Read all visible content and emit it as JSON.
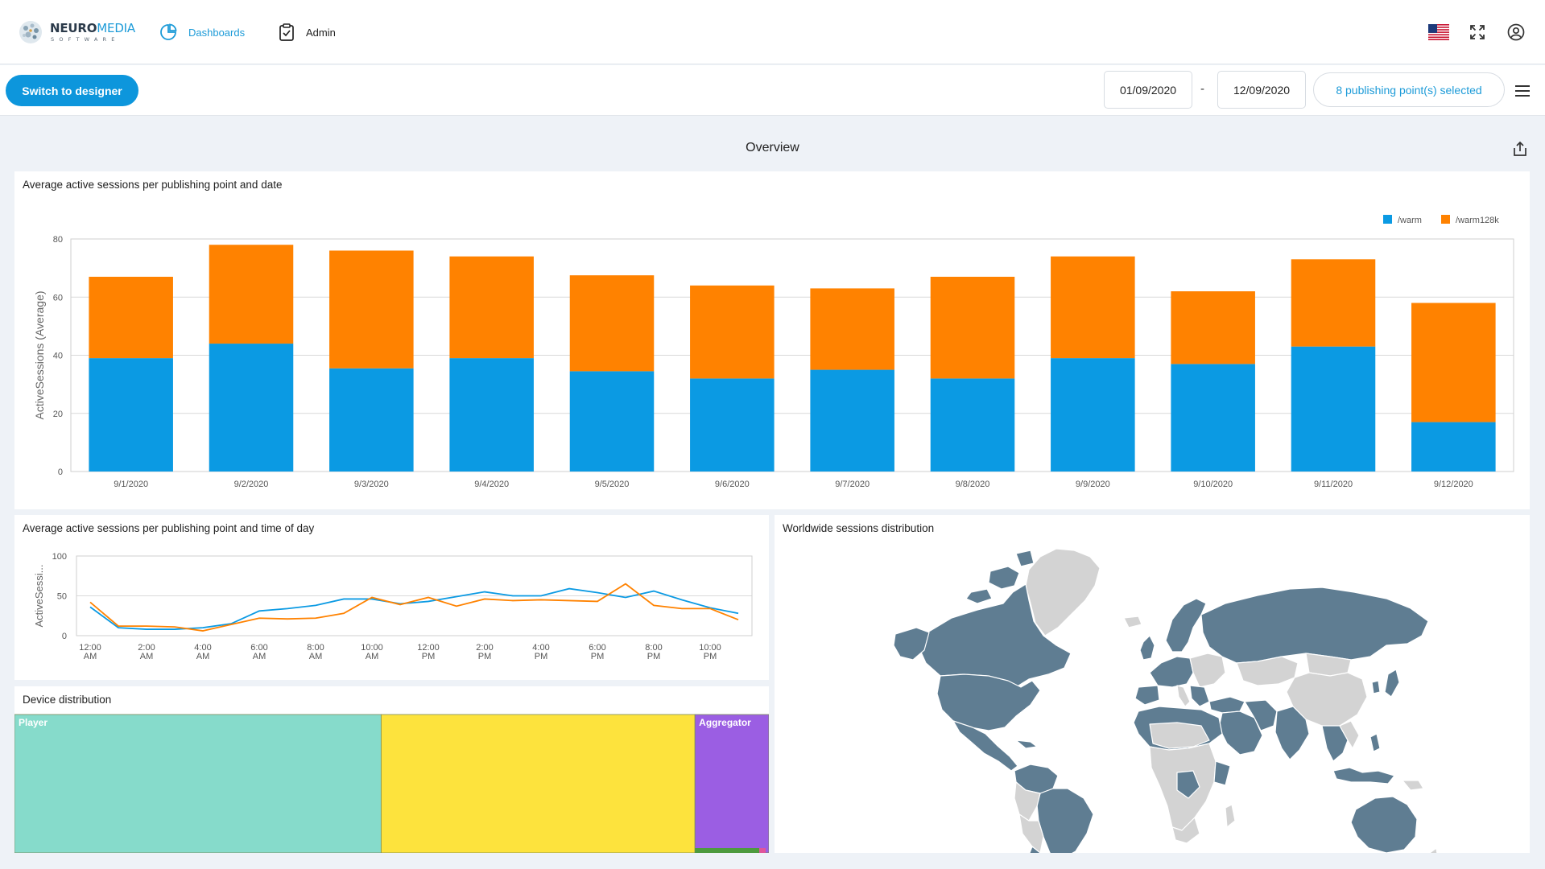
{
  "header": {
    "logo_name": "NEURO",
    "logo_accent": "MEDIA",
    "logo_sub": "SOFTWARE",
    "nav": [
      {
        "label": "Dashboards",
        "icon": "pie-chart-icon",
        "active": true
      },
      {
        "label": "Admin",
        "icon": "clipboard-icon",
        "active": false
      }
    ],
    "right_icons": [
      "us-flag-icon",
      "fullscreen-icon",
      "user-account-icon"
    ]
  },
  "toolbar": {
    "switch_label": "Switch to designer",
    "date_from": "01/09/2020",
    "date_separator": "-",
    "date_to": "12/09/2020",
    "publishing_points": "8 publishing point(s) selected"
  },
  "dashboard": {
    "title": "Overview"
  },
  "colors": {
    "primary": "#0d96dc",
    "series_warm": "#0b9ae3",
    "series_warm128k": "#ff8200",
    "map_highlight": "#5f7d92",
    "map_base": "#d3d3d3",
    "treemap_player": "#86dbcb",
    "treemap_yellow": "#fde33d",
    "treemap_aggregator": "#9b5ee3"
  },
  "panels": {
    "bar": {
      "title": "Average active sessions per publishing point and date"
    },
    "line": {
      "title": "Average active sessions per publishing point and time of day"
    },
    "map": {
      "title": "Worldwide sessions distribution"
    },
    "treemap": {
      "title": "Device distribution"
    }
  },
  "chart_data": [
    {
      "type": "bar",
      "stacked": true,
      "categories": [
        "9/1/2020",
        "9/2/2020",
        "9/3/2020",
        "9/4/2020",
        "9/5/2020",
        "9/6/2020",
        "9/7/2020",
        "9/8/2020",
        "9/9/2020",
        "9/10/2020",
        "9/11/2020",
        "9/12/2020"
      ],
      "series": [
        {
          "name": "/warm",
          "values": [
            39,
            44,
            35.5,
            39,
            34.5,
            32,
            35,
            32,
            39,
            37,
            43,
            17
          ]
        },
        {
          "name": "/warm128k",
          "values": [
            28,
            34,
            40.5,
            35,
            33,
            32,
            28,
            35,
            35,
            25,
            30,
            41
          ]
        }
      ],
      "ylabel": "ActiveSessions (Average)",
      "yticks": [
        0,
        20,
        40,
        60,
        80
      ],
      "ylim": [
        0,
        80
      ],
      "legend": "top-right",
      "grid": true
    },
    {
      "type": "line",
      "x": [
        "12:00 AM",
        "1:00 AM",
        "2:00 AM",
        "3:00 AM",
        "4:00 AM",
        "5:00 AM",
        "6:00 AM",
        "7:00 AM",
        "8:00 AM",
        "9:00 AM",
        "10:00 AM",
        "11:00 AM",
        "12:00 PM",
        "1:00 PM",
        "2:00 PM",
        "3:00 PM",
        "4:00 PM",
        "5:00 PM",
        "6:00 PM",
        "7:00 PM",
        "8:00 PM",
        "9:00 PM",
        "10:00 PM",
        "11:00 PM"
      ],
      "xtick_labels": [
        [
          "12:00",
          "AM"
        ],
        [
          "2:00",
          "AM"
        ],
        [
          "4:00",
          "AM"
        ],
        [
          "6:00",
          "AM"
        ],
        [
          "8:00",
          "AM"
        ],
        [
          "10:00",
          "AM"
        ],
        [
          "12:00",
          "PM"
        ],
        [
          "2:00",
          "PM"
        ],
        [
          "4:00",
          "PM"
        ],
        [
          "6:00",
          "PM"
        ],
        [
          "8:00",
          "PM"
        ],
        [
          "10:00",
          "PM"
        ]
      ],
      "series": [
        {
          "name": "/warm",
          "values": [
            36,
            10,
            8,
            8,
            10,
            15,
            31,
            34,
            38,
            46,
            46,
            40,
            43,
            49,
            55,
            50,
            50,
            59,
            54,
            48,
            56,
            45,
            35,
            28
          ]
        },
        {
          "name": "/warm128k",
          "values": [
            42,
            12,
            12,
            11,
            6,
            14,
            22,
            21,
            22,
            28,
            48,
            39,
            48,
            37,
            46,
            44,
            45,
            44,
            43,
            65,
            38,
            34,
            34,
            20
          ]
        }
      ],
      "ylabel": "ActiveSessi...",
      "yticks": [
        0,
        50,
        100
      ],
      "ylim": [
        0,
        100
      ],
      "grid": true
    },
    {
      "type": "treemap",
      "items": [
        {
          "name": "Player",
          "label": "Player",
          "value": 48.6
        },
        {
          "name": "yellow",
          "label": "",
          "value": 41.6
        },
        {
          "name": "Aggregator",
          "label": "Aggregator",
          "value": 9.8
        }
      ]
    }
  ]
}
